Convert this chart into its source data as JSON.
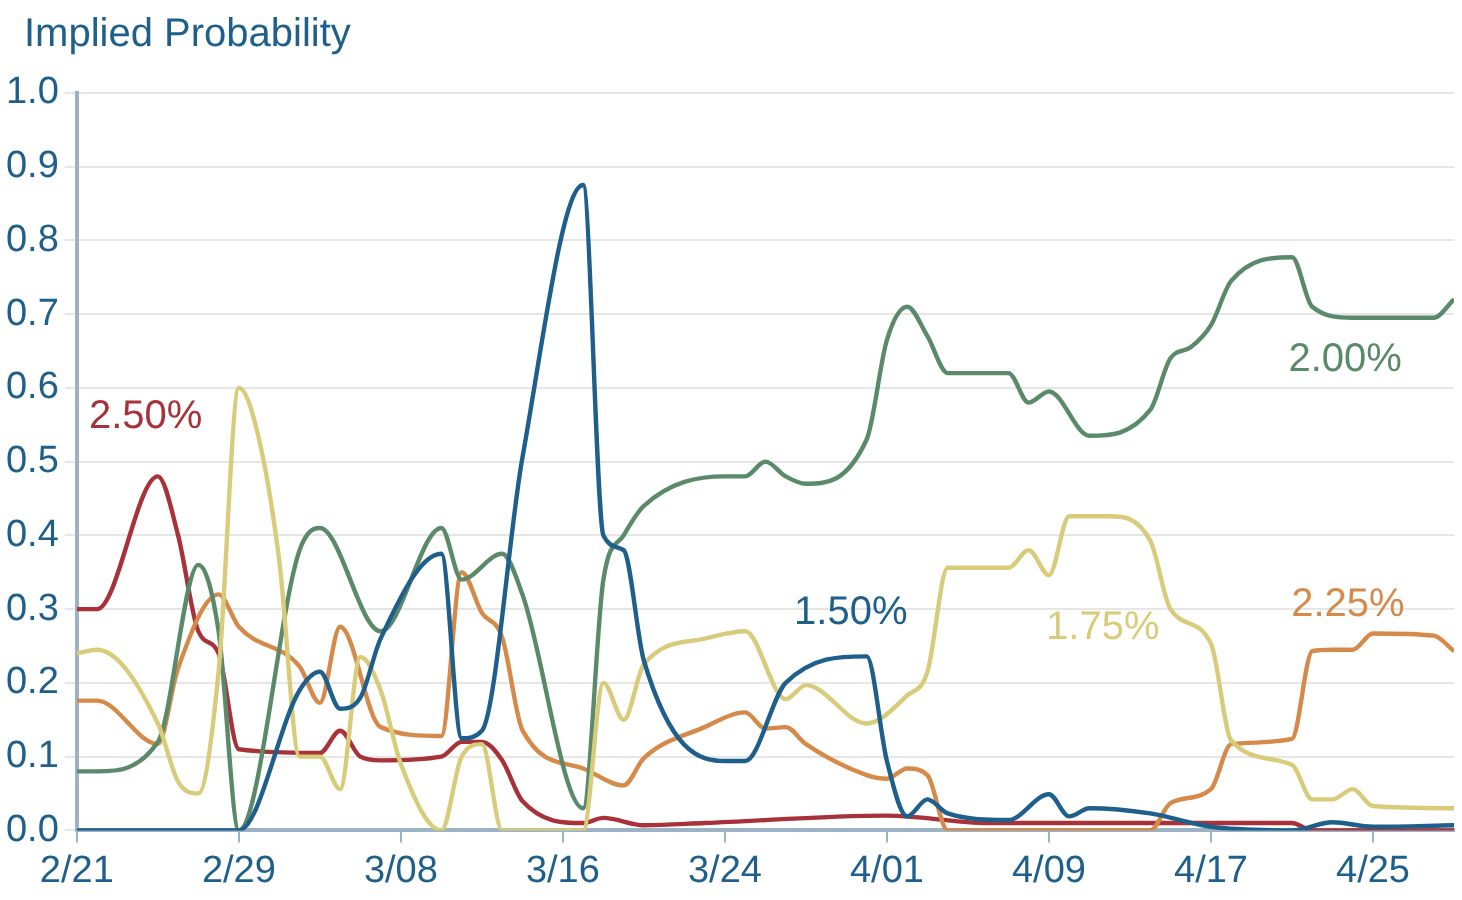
{
  "chart_data": {
    "type": "line",
    "ylabel": "Implied Probability",
    "xlim": [
      "--02-21",
      "--04-29"
    ],
    "xticks": [
      {
        "value": "--02-21",
        "label": "2/21"
      },
      {
        "value": "--02-29",
        "label": "2/29"
      },
      {
        "value": "--03-08",
        "label": "3/08"
      },
      {
        "value": "--03-16",
        "label": "3/16"
      },
      {
        "value": "--03-24",
        "label": "3/24"
      },
      {
        "value": "--04-01",
        "label": "4/01"
      },
      {
        "value": "--04-09",
        "label": "4/09"
      },
      {
        "value": "--04-17",
        "label": "4/17"
      },
      {
        "value": "--04-25",
        "label": "4/25"
      }
    ],
    "ylim": [
      0,
      1
    ],
    "yticks": [
      {
        "value": 0,
        "label": "0.0"
      },
      0.1,
      0.2,
      0.3,
      0.4,
      0.5,
      0.6,
      0.7,
      0.8,
      0.9,
      {
        "value": 1,
        "label": "1.0"
      }
    ],
    "grid": "y",
    "legend": false,
    "marker": "none",
    "line_style": "solid",
    "series": [
      {
        "name": "1.50%",
        "color": "#1f5f8b",
        "x": [
          "--02-21",
          "--02-29",
          "--03-03",
          "--03-04",
          "--03-05",
          "--03-06",
          "--03-07",
          "--03-10",
          "--03-11",
          "--03-12",
          "--03-14",
          "--03-17",
          "--03-18",
          "--03-19",
          "--03-20",
          "--03-24",
          "--03-25",
          "--03-27",
          "--03-31",
          "--04-01",
          "--04-02",
          "--04-03",
          "--04-04",
          "--04-07",
          "--04-09",
          "--04-10",
          "--04-11",
          "--04-14",
          "--04-17",
          "--04-21",
          "--04-23",
          "--04-25",
          "--04-29"
        ],
        "values": [
          0,
          0,
          0.19,
          0.215,
          0.165,
          0.18,
          0.26,
          0.375,
          0.125,
          0.135,
          0.505,
          0.875,
          0.4,
          0.38,
          0.23,
          0.094,
          0.094,
          0.2,
          0.236,
          0.094,
          0.019,
          0.042,
          0.023,
          0.014,
          0.049,
          0.019,
          0.03,
          0.023,
          0.005,
          0,
          0.011,
          0.005,
          0.007
        ]
      },
      {
        "name": "1.75%",
        "color": "#d8cc7a",
        "x": [
          "--02-21",
          "--02-22",
          "--02-25",
          "--02-26",
          "--02-27",
          "--02-28",
          "--02-29",
          "--03-01",
          "--03-02",
          "--03-03",
          "--03-04",
          "--03-05",
          "--03-06",
          "--03-07",
          "--03-08",
          "--03-10",
          "--03-11",
          "--03-12",
          "--03-13",
          "--03-14",
          "--03-17",
          "--03-18",
          "--03-19",
          "--03-20",
          "--03-23",
          "--03-25",
          "--03-27",
          "--03-28",
          "--03-31",
          "--04-02",
          "--04-03",
          "--04-04",
          "--04-07",
          "--04-08",
          "--04-09",
          "--04-10",
          "--04-12",
          "--04-14",
          "--04-15",
          "--04-17",
          "--04-18",
          "--04-21",
          "--04-22",
          "--04-23",
          "--04-24",
          "--04-25",
          "--04-29"
        ],
        "values": [
          0.24,
          0.245,
          0.145,
          0.066,
          0.05,
          0.215,
          0.6,
          0.53,
          0.365,
          0.1,
          0.1,
          0.056,
          0.235,
          0.19,
          0.09,
          0,
          0.1,
          0.117,
          0,
          0,
          0,
          0.2,
          0.15,
          0.225,
          0.26,
          0.27,
          0.178,
          0.197,
          0.145,
          0.183,
          0.215,
          0.356,
          0.356,
          0.38,
          0.346,
          0.426,
          0.426,
          0.393,
          0.3,
          0.253,
          0.122,
          0.089,
          0.042,
          0.042,
          0.056,
          0.033,
          0.03
        ]
      },
      {
        "name": "2.00%",
        "color": "#5a8a6a",
        "x": [
          "--02-21",
          "--02-22",
          "--02-25",
          "--02-27",
          "--02-28",
          "--02-29",
          "--03-03",
          "--03-04",
          "--03-07",
          "--03-10",
          "--03-11",
          "--03-13",
          "--03-14",
          "--03-17",
          "--03-18",
          "--03-19",
          "--03-20",
          "--03-24",
          "--03-25",
          "--03-26",
          "--03-27",
          "--03-28",
          "--03-31",
          "--04-01",
          "--04-02",
          "--04-03",
          "--04-04",
          "--04-07",
          "--04-08",
          "--04-09",
          "--04-11",
          "--04-14",
          "--04-15",
          "--04-16",
          "--04-17",
          "--04-18",
          "--04-21",
          "--04-22",
          "--04-24",
          "--04-28",
          "--04-29"
        ],
        "values": [
          0.08,
          0.08,
          0.12,
          0.36,
          0.27,
          0,
          0.38,
          0.41,
          0.27,
          0.41,
          0.34,
          0.375,
          0.32,
          0.03,
          0.34,
          0.4,
          0.44,
          0.48,
          0.48,
          0.5,
          0.48,
          0.47,
          0.53,
          0.665,
          0.71,
          0.67,
          0.62,
          0.62,
          0.58,
          0.595,
          0.535,
          0.57,
          0.64,
          0.655,
          0.685,
          0.745,
          0.777,
          0.71,
          0.695,
          0.695,
          0.72
        ]
      },
      {
        "name": "2.25%",
        "color": "#d68a4a",
        "x": [
          "--02-21",
          "--02-22",
          "--02-25",
          "--02-26",
          "--02-28",
          "--02-29",
          "--03-03",
          "--03-04",
          "--03-05",
          "--03-07",
          "--03-10",
          "--03-11",
          "--03-12",
          "--03-13",
          "--03-14",
          "--03-17",
          "--03-19",
          "--03-20",
          "--03-23",
          "--03-25",
          "--03-26",
          "--03-27",
          "--03-28",
          "--03-31",
          "--04-01",
          "--04-02",
          "--04-03",
          "--04-04",
          "--04-14",
          "--04-15",
          "--04-17",
          "--04-18",
          "--04-21",
          "--04-22",
          "--04-23",
          "--04-24",
          "--04-25",
          "--04-28",
          "--04-29"
        ],
        "values": [
          0.176,
          0.176,
          0.117,
          0.22,
          0.32,
          0.276,
          0.222,
          0.173,
          0.276,
          0.14,
          0.128,
          0.35,
          0.295,
          0.262,
          0.136,
          0.084,
          0.061,
          0.098,
          0.14,
          0.16,
          0.138,
          0.14,
          0.117,
          0.075,
          0.07,
          0.084,
          0.075,
          0,
          0,
          0.037,
          0.056,
          0.117,
          0.124,
          0.243,
          0.245,
          0.245,
          0.267,
          0.264,
          0.243
        ]
      },
      {
        "name": "2.50%",
        "color": "#a8323a",
        "x": [
          "--02-21",
          "--02-22",
          "--02-25",
          "--02-26",
          "--02-27",
          "--02-28",
          "--02-29",
          "--03-04",
          "--03-05",
          "--03-06",
          "--03-07",
          "--03-10",
          "--03-11",
          "--03-12",
          "--03-13",
          "--03-14",
          "--03-17",
          "--03-18",
          "--03-20",
          "--03-23",
          "--04-01",
          "--04-06",
          "--04-16",
          "--04-21",
          "--04-22",
          "--04-29"
        ],
        "values": [
          0.3,
          0.3,
          0.48,
          0.4,
          0.27,
          0.24,
          0.11,
          0.105,
          0.135,
          0.1,
          0.095,
          0.1,
          0.12,
          0.12,
          0.095,
          0.04,
          0.01,
          0.017,
          0.007,
          0.01,
          0.02,
          0.01,
          0.01,
          0.01,
          0,
          0
        ]
      }
    ]
  }
}
